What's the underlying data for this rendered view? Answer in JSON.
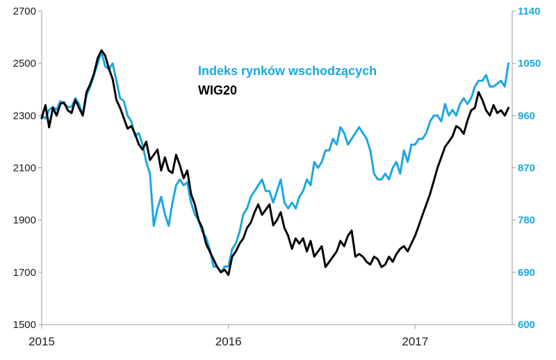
{
  "chart_data": {
    "type": "line",
    "title": "",
    "xlabel": "",
    "ylabel_left": "",
    "ylabel_right": "",
    "x_ticks": [
      {
        "value": 2015,
        "label": "2015"
      },
      {
        "value": 2016,
        "label": "2016"
      },
      {
        "value": 2017,
        "label": "2017"
      }
    ],
    "xlim": [
      2015,
      2017.52
    ],
    "left_axis": {
      "ylim": [
        1500,
        2700
      ],
      "ticks": [
        "1500",
        "1700",
        "1900",
        "2100",
        "2300",
        "2500",
        "2700"
      ]
    },
    "right_axis": {
      "ylim": [
        600,
        1140
      ],
      "ticks": [
        "600",
        "690",
        "780",
        "870",
        "960",
        "1050",
        "1140"
      ]
    },
    "grid": false,
    "legend_placement": "top-center",
    "colors": {
      "wig20": "#000000",
      "em": "#1aa7e0",
      "axis": "#9a9a9a"
    },
    "series": [
      {
        "name": "WIG20",
        "axis": "left",
        "color": "#000000",
        "x": [
          2015.0,
          2015.02,
          2015.04,
          2015.06,
          2015.08,
          2015.1,
          2015.12,
          2015.14,
          2015.16,
          2015.18,
          2015.2,
          2015.22,
          2015.24,
          2015.26,
          2015.28,
          2015.3,
          2015.32,
          2015.34,
          2015.36,
          2015.38,
          2015.4,
          2015.42,
          2015.44,
          2015.46,
          2015.48,
          2015.5,
          2015.52,
          2015.54,
          2015.56,
          2015.58,
          2015.6,
          2015.62,
          2015.64,
          2015.66,
          2015.68,
          2015.7,
          2015.72,
          2015.74,
          2015.76,
          2015.78,
          2015.8,
          2015.82,
          2015.84,
          2015.86,
          2015.88,
          2015.9,
          2015.92,
          2015.94,
          2015.96,
          2015.98,
          2016.0,
          2016.02,
          2016.04,
          2016.06,
          2016.08,
          2016.1,
          2016.12,
          2016.14,
          2016.16,
          2016.18,
          2016.2,
          2016.22,
          2016.24,
          2016.26,
          2016.28,
          2016.3,
          2016.32,
          2016.34,
          2016.36,
          2016.38,
          2016.4,
          2016.42,
          2016.44,
          2016.46,
          2016.48,
          2016.5,
          2016.52,
          2016.54,
          2016.56,
          2016.58,
          2016.6,
          2016.62,
          2016.64,
          2016.66,
          2016.68,
          2016.7,
          2016.72,
          2016.74,
          2016.76,
          2016.78,
          2016.8,
          2016.82,
          2016.84,
          2016.86,
          2016.88,
          2016.9,
          2016.92,
          2016.94,
          2016.96,
          2016.98,
          2017.0,
          2017.02,
          2017.04,
          2017.06,
          2017.08,
          2017.1,
          2017.12,
          2017.14,
          2017.16,
          2017.18,
          2017.2,
          2017.22,
          2017.24,
          2017.26,
          2017.28,
          2017.3,
          2017.32,
          2017.34,
          2017.36,
          2017.38,
          2017.4,
          2017.42,
          2017.44,
          2017.46,
          2017.48,
          2017.5
        ],
        "values": [
          2290,
          2340,
          2255,
          2330,
          2300,
          2345,
          2350,
          2320,
          2310,
          2360,
          2330,
          2300,
          2390,
          2420,
          2460,
          2520,
          2550,
          2530,
          2480,
          2440,
          2360,
          2330,
          2290,
          2250,
          2260,
          2230,
          2190,
          2170,
          2200,
          2130,
          2150,
          2170,
          2090,
          2140,
          2090,
          2080,
          2150,
          2110,
          2060,
          2090,
          2000,
          1960,
          1900,
          1870,
          1810,
          1780,
          1750,
          1720,
          1700,
          1710,
          1690,
          1760,
          1780,
          1810,
          1830,
          1870,
          1890,
          1930,
          1960,
          1920,
          1940,
          1960,
          1880,
          1900,
          1930,
          1870,
          1840,
          1790,
          1830,
          1810,
          1830,
          1780,
          1820,
          1760,
          1780,
          1800,
          1720,
          1740,
          1760,
          1780,
          1820,
          1800,
          1840,
          1860,
          1760,
          1770,
          1760,
          1740,
          1730,
          1760,
          1750,
          1720,
          1730,
          1760,
          1740,
          1770,
          1790,
          1800,
          1780,
          1810,
          1840,
          1880,
          1920,
          1960,
          2000,
          2050,
          2100,
          2140,
          2180,
          2200,
          2220,
          2260,
          2250,
          2230,
          2280,
          2320,
          2330,
          2390,
          2360,
          2320,
          2300,
          2340,
          2310,
          2320,
          2300,
          2330
        ]
      },
      {
        "name": "Indeks rynków wschodzących",
        "axis": "right",
        "color": "#1aa7e0",
        "x": [
          2015.0,
          2015.02,
          2015.04,
          2015.06,
          2015.08,
          2015.1,
          2015.12,
          2015.14,
          2015.16,
          2015.18,
          2015.2,
          2015.22,
          2015.24,
          2015.26,
          2015.28,
          2015.3,
          2015.32,
          2015.34,
          2015.36,
          2015.38,
          2015.4,
          2015.42,
          2015.44,
          2015.46,
          2015.48,
          2015.5,
          2015.52,
          2015.54,
          2015.56,
          2015.58,
          2015.6,
          2015.62,
          2015.64,
          2015.66,
          2015.68,
          2015.7,
          2015.72,
          2015.74,
          2015.76,
          2015.78,
          2015.8,
          2015.82,
          2015.84,
          2015.86,
          2015.88,
          2015.9,
          2015.92,
          2015.94,
          2015.96,
          2015.98,
          2016.0,
          2016.02,
          2016.04,
          2016.06,
          2016.08,
          2016.1,
          2016.12,
          2016.14,
          2016.16,
          2016.18,
          2016.2,
          2016.22,
          2016.24,
          2016.26,
          2016.28,
          2016.3,
          2016.32,
          2016.34,
          2016.36,
          2016.38,
          2016.4,
          2016.42,
          2016.44,
          2016.46,
          2016.48,
          2016.5,
          2016.52,
          2016.54,
          2016.56,
          2016.58,
          2016.6,
          2016.62,
          2016.64,
          2016.66,
          2016.68,
          2016.7,
          2016.72,
          2016.74,
          2016.76,
          2016.78,
          2016.8,
          2016.82,
          2016.84,
          2016.86,
          2016.88,
          2016.9,
          2016.92,
          2016.94,
          2016.96,
          2016.98,
          2017.0,
          2017.02,
          2017.04,
          2017.06,
          2017.08,
          2017.1,
          2017.12,
          2017.14,
          2017.16,
          2017.18,
          2017.2,
          2017.22,
          2017.24,
          2017.26,
          2017.28,
          2017.3,
          2017.32,
          2017.34,
          2017.36,
          2017.38,
          2017.4,
          2017.42,
          2017.44,
          2017.46,
          2017.48,
          2017.5
        ],
        "values": [
          960,
          955,
          970,
          975,
          970,
          985,
          980,
          975,
          975,
          990,
          980,
          960,
          995,
          1010,
          1030,
          1050,
          1070,
          1045,
          1040,
          1050,
          1020,
          990,
          985,
          960,
          950,
          925,
          930,
          910,
          880,
          860,
          770,
          800,
          820,
          790,
          770,
          810,
          840,
          850,
          840,
          845,
          810,
          790,
          780,
          760,
          750,
          730,
          700,
          700,
          690,
          700,
          700,
          730,
          740,
          760,
          790,
          800,
          820,
          830,
          840,
          850,
          830,
          830,
          810,
          830,
          850,
          810,
          800,
          810,
          800,
          820,
          830,
          850,
          840,
          880,
          870,
          880,
          900,
          900,
          920,
          910,
          940,
          930,
          910,
          920,
          930,
          940,
          930,
          920,
          900,
          860,
          850,
          850,
          860,
          850,
          870,
          880,
          860,
          900,
          880,
          910,
          910,
          920,
          920,
          930,
          950,
          960,
          960,
          950,
          980,
          960,
          970,
          960,
          980,
          990,
          980,
          990,
          1010,
          1020,
          1020,
          1030,
          1010,
          1010,
          1015,
          1020,
          1010,
          1050
        ]
      }
    ]
  }
}
